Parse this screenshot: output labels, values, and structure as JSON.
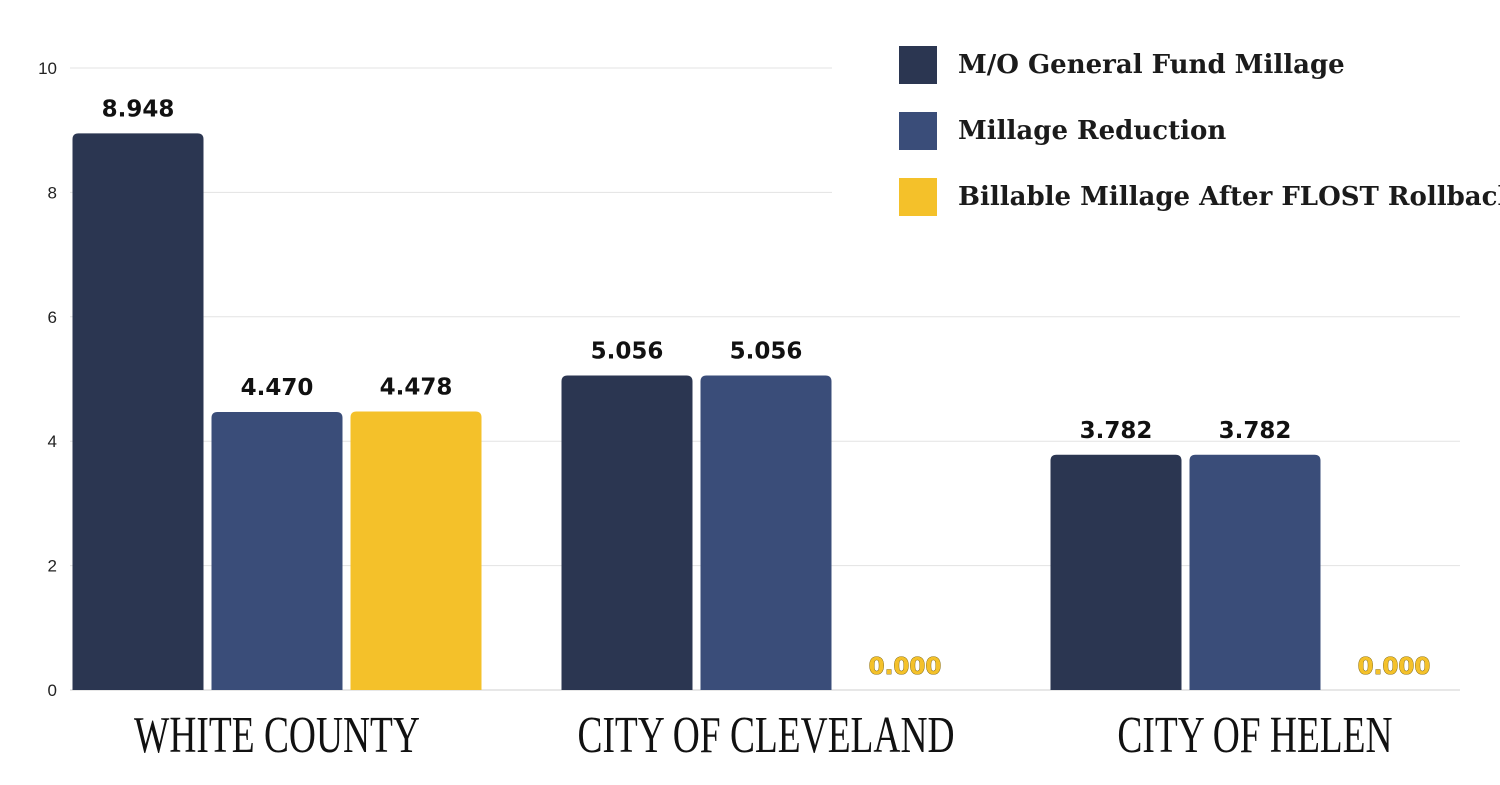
{
  "chart_data": {
    "type": "bar",
    "title": "",
    "xlabel": "",
    "ylabel": "",
    "categories": [
      "WHITE COUNTY",
      "CITY OF CLEVELAND",
      "CITY OF HELEN"
    ],
    "series": [
      {
        "name": "M/O General Fund Millage",
        "color": "#2B3651",
        "values": [
          8.948,
          5.056,
          3.782
        ],
        "labels": [
          "8.948",
          "5.056",
          "3.782"
        ]
      },
      {
        "name": "Millage Reduction",
        "color": "#3A4D79",
        "values": [
          4.47,
          5.056,
          3.782
        ],
        "labels": [
          "4.470",
          "5.056",
          "3.782"
        ]
      },
      {
        "name": "Billable Millage After FLOST Rollback",
        "color": "#F4C12A",
        "values": [
          4.478,
          0,
          0
        ],
        "labels": [
          "4.478",
          "0.000",
          "0.000"
        ]
      }
    ],
    "ylim": [
      0,
      10
    ],
    "yticks": [
      0,
      2,
      4,
      6,
      8,
      10
    ],
    "grid": true,
    "legend_position": "top-right"
  }
}
